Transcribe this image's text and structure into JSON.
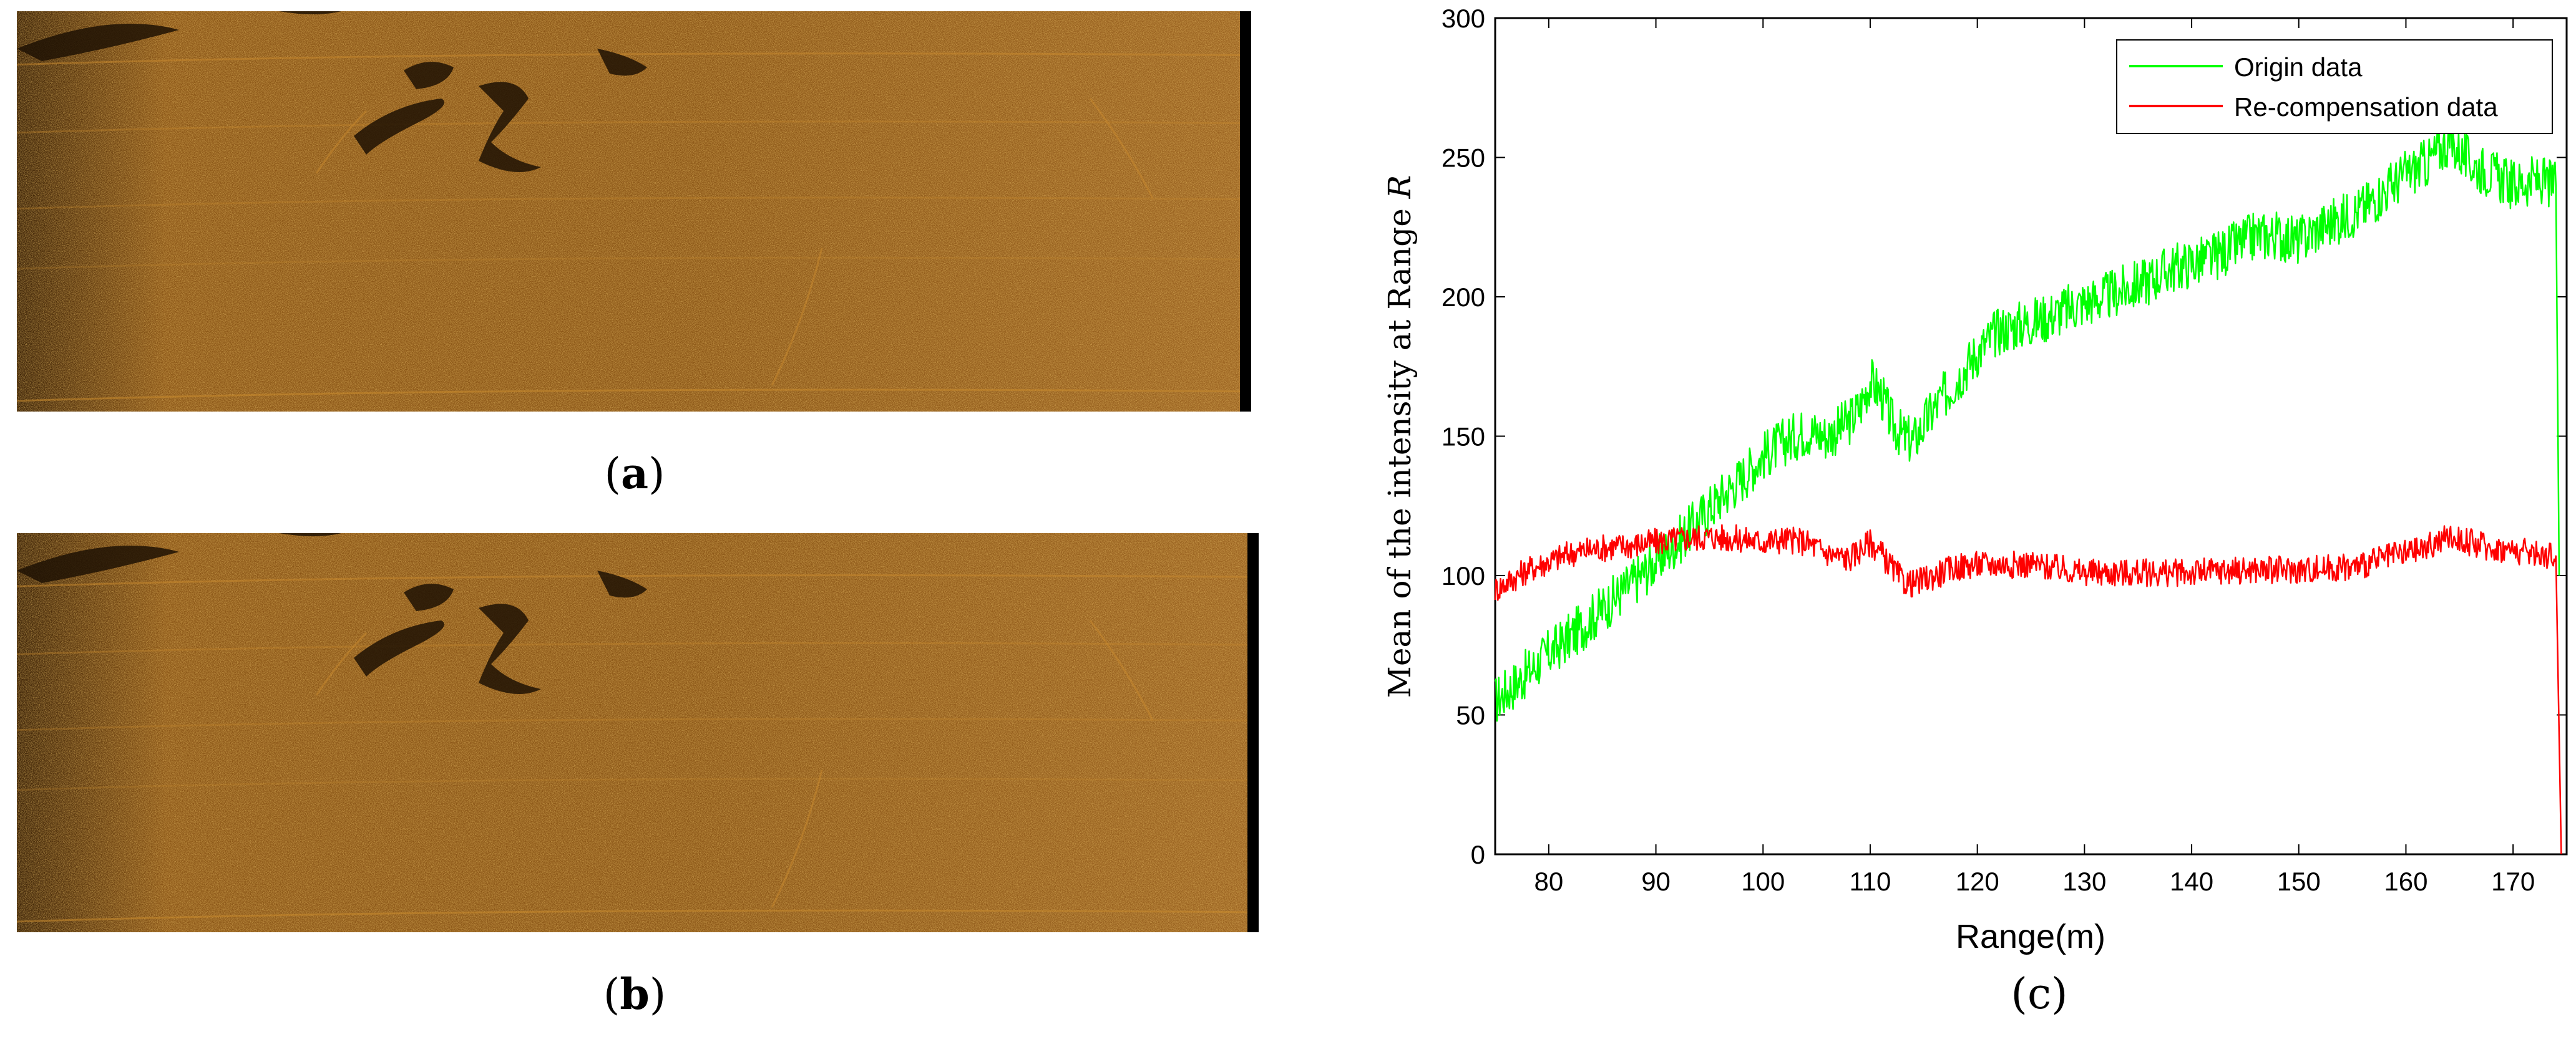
{
  "panels": {
    "a": {
      "open": "(",
      "letter": "a",
      "close": ")"
    },
    "b": {
      "open": "(",
      "letter": "b",
      "close": ")"
    },
    "c": {
      "label": "(c)"
    }
  },
  "colors": {
    "sonar_dark": "#3a2106",
    "sonar_mid": "#8a5516",
    "sonar_light": "#c98a2e",
    "origin": "#00ff00",
    "recomp": "#ff0000"
  },
  "chart_data": {
    "type": "line",
    "title": "",
    "xlabel": "Range(m)",
    "ylabel_prefix": "Mean of the intensity at Range ",
    "ylabel_var": "R",
    "xlim": [
      75,
      175
    ],
    "ylim": [
      0,
      300
    ],
    "xticks": [
      80,
      90,
      100,
      110,
      120,
      130,
      140,
      150,
      160,
      170
    ],
    "yticks": [
      0,
      50,
      100,
      150,
      200,
      250,
      300
    ],
    "legend_position": "top-right",
    "series": [
      {
        "name": "Origin data",
        "color": "#00ff00",
        "x": [
          75,
          78,
          80,
          82,
          85,
          88,
          90,
          92,
          94,
          96,
          98,
          100,
          102,
          104,
          106,
          108,
          109,
          110,
          111,
          112,
          113,
          114,
          116,
          118,
          120,
          122,
          124,
          126,
          128,
          130,
          132,
          134,
          136,
          138,
          140,
          142,
          144,
          146,
          148,
          150,
          152,
          154,
          156,
          158,
          160,
          162,
          164,
          166,
          168,
          170,
          172,
          174,
          174.3
        ],
        "y": [
          55,
          65,
          72,
          78,
          88,
          98,
          105,
          112,
          120,
          128,
          135,
          143,
          148,
          152,
          150,
          155,
          160,
          170,
          165,
          155,
          150,
          148,
          160,
          170,
          180,
          188,
          190,
          192,
          195,
          198,
          200,
          203,
          206,
          210,
          212,
          214,
          218,
          222,
          222,
          220,
          225,
          228,
          232,
          238,
          244,
          248,
          256,
          248,
          244,
          240,
          242,
          240,
          100
        ]
      },
      {
        "name": "Re-compensation data",
        "color": "#ff0000",
        "x": [
          75,
          78,
          80,
          82,
          85,
          88,
          90,
          92,
          95,
          98,
          100,
          102,
          104,
          106,
          108,
          110,
          111,
          112,
          113,
          114,
          116,
          118,
          120,
          125,
          130,
          135,
          140,
          145,
          150,
          155,
          160,
          162,
          164,
          166,
          168,
          170,
          172,
          174,
          174.5
        ],
        "y": [
          95,
          102,
          105,
          108,
          110,
          111,
          112,
          113,
          114,
          113,
          112,
          113,
          112,
          108,
          106,
          112,
          108,
          103,
          98,
          97,
          100,
          103,
          104,
          104,
          101,
          101,
          101,
          102,
          102,
          103,
          108,
          110,
          114,
          112,
          110,
          109,
          108,
          107,
          0
        ]
      }
    ]
  }
}
